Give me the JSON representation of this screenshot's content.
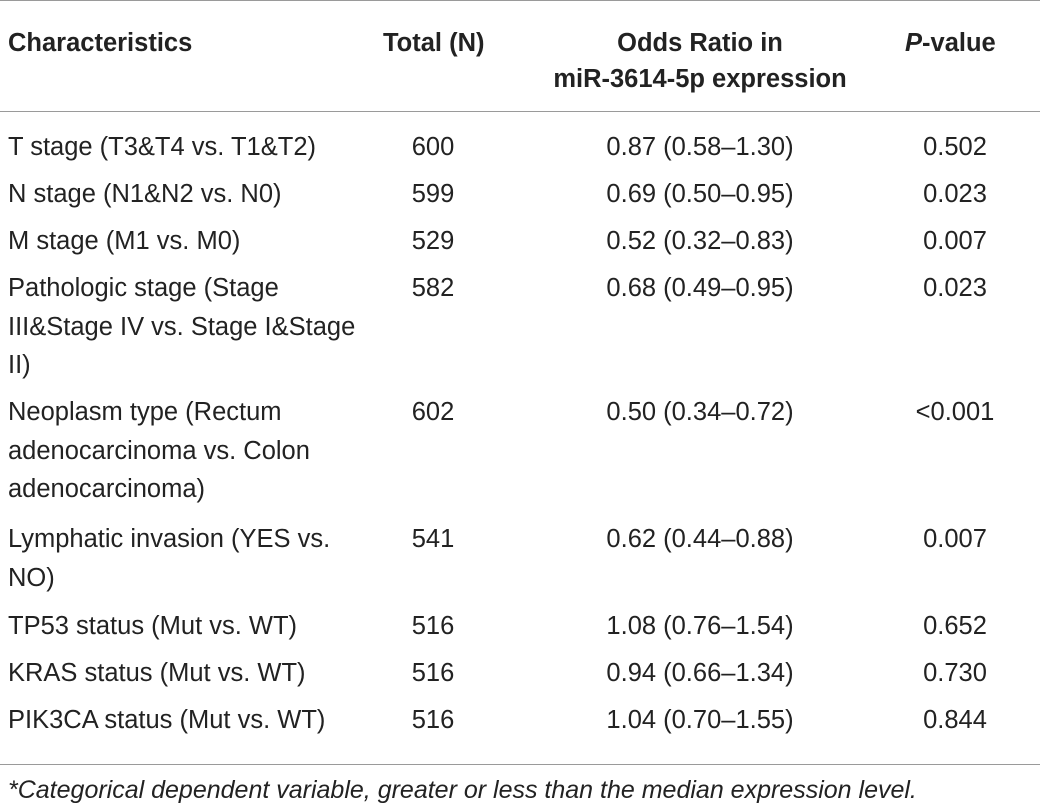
{
  "table": {
    "headers": {
      "characteristics": "Characteristics",
      "total": "Total (N)",
      "odds_line1": "Odds Ratio in",
      "odds_line2": "miR-3614-5p expression",
      "p_italic": "P",
      "p_rest": "-value"
    },
    "rows": [
      {
        "characteristic": "T stage (T3&T4 vs. T1&T2)",
        "total": "600",
        "odds": "0.87 (0.58–1.30)",
        "p": "0.502"
      },
      {
        "characteristic": "N stage (N1&N2 vs. N0)",
        "total": "599",
        "odds": "0.69 (0.50–0.95)",
        "p": "0.023"
      },
      {
        "characteristic": "M stage (M1 vs. M0)",
        "total": "529",
        "odds": "0.52 (0.32–0.83)",
        "p": "0.007"
      },
      {
        "characteristic": "Pathologic stage (Stage III&Stage IV vs. Stage I&Stage II)",
        "total": "582",
        "odds": "0.68 (0.49–0.95)",
        "p": "0.023"
      },
      {
        "characteristic": "Neoplasm type (Rectum adenocarcinoma vs. Colon adenocarcinoma)",
        "total": "602",
        "odds": "0.50 (0.34–0.72)",
        "p": "<0.001"
      },
      {
        "characteristic": "Lymphatic invasion (YES vs. NO)",
        "total": "541",
        "odds": "0.62 (0.44–0.88)",
        "p": "0.007"
      },
      {
        "characteristic": "TP53 status (Mut vs. WT)",
        "total": "516",
        "odds": "1.08 (0.76–1.54)",
        "p": "0.652"
      },
      {
        "characteristic": "KRAS status (Mut vs. WT)",
        "total": "516",
        "odds": "0.94 (0.66–1.34)",
        "p": "0.730"
      },
      {
        "characteristic": "PIK3CA status (Mut vs. WT)",
        "total": "516",
        "odds": "1.04 (0.70–1.55)",
        "p": "0.844"
      }
    ],
    "footnote": "*Categorical dependent variable, greater or less than the median expression level."
  }
}
